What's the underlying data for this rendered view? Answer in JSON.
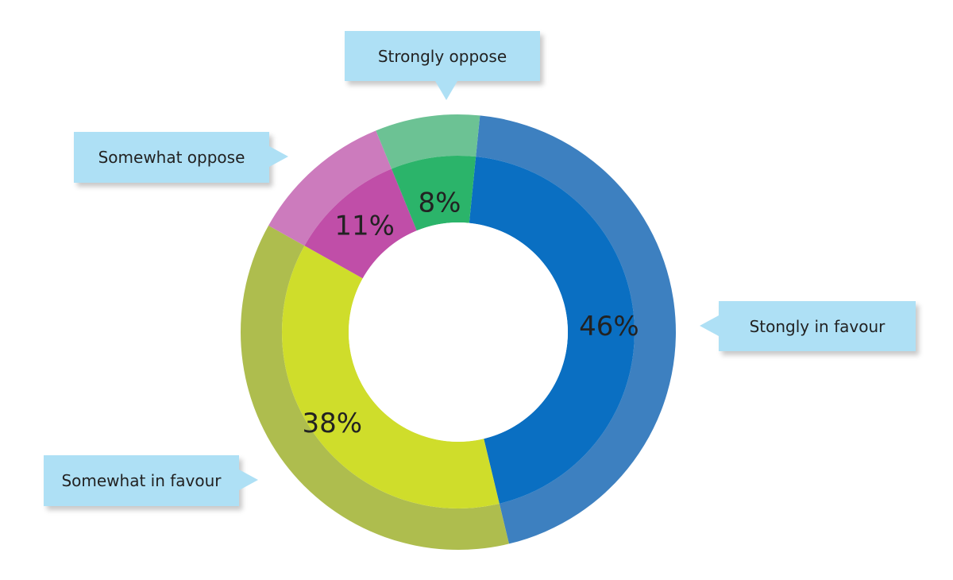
{
  "chart_data": {
    "type": "pie",
    "variant": "donut",
    "title": "",
    "categories": [
      "Stongly in favour",
      "Somewhat in favour",
      "Somewhat oppose",
      "Strongly oppose"
    ],
    "values": [
      46,
      38,
      11,
      8
    ],
    "value_labels": [
      "46%",
      "38%",
      "11%",
      "8%"
    ],
    "colors": [
      "#0a6fc2",
      "#cfdd2b",
      "#c04ea8",
      "#2bb46a"
    ],
    "outer_ring_colors": [
      "#3d80c0",
      "#aebd4e",
      "#cc7bbd",
      "#6cc294"
    ],
    "legend": "callouts"
  }
}
